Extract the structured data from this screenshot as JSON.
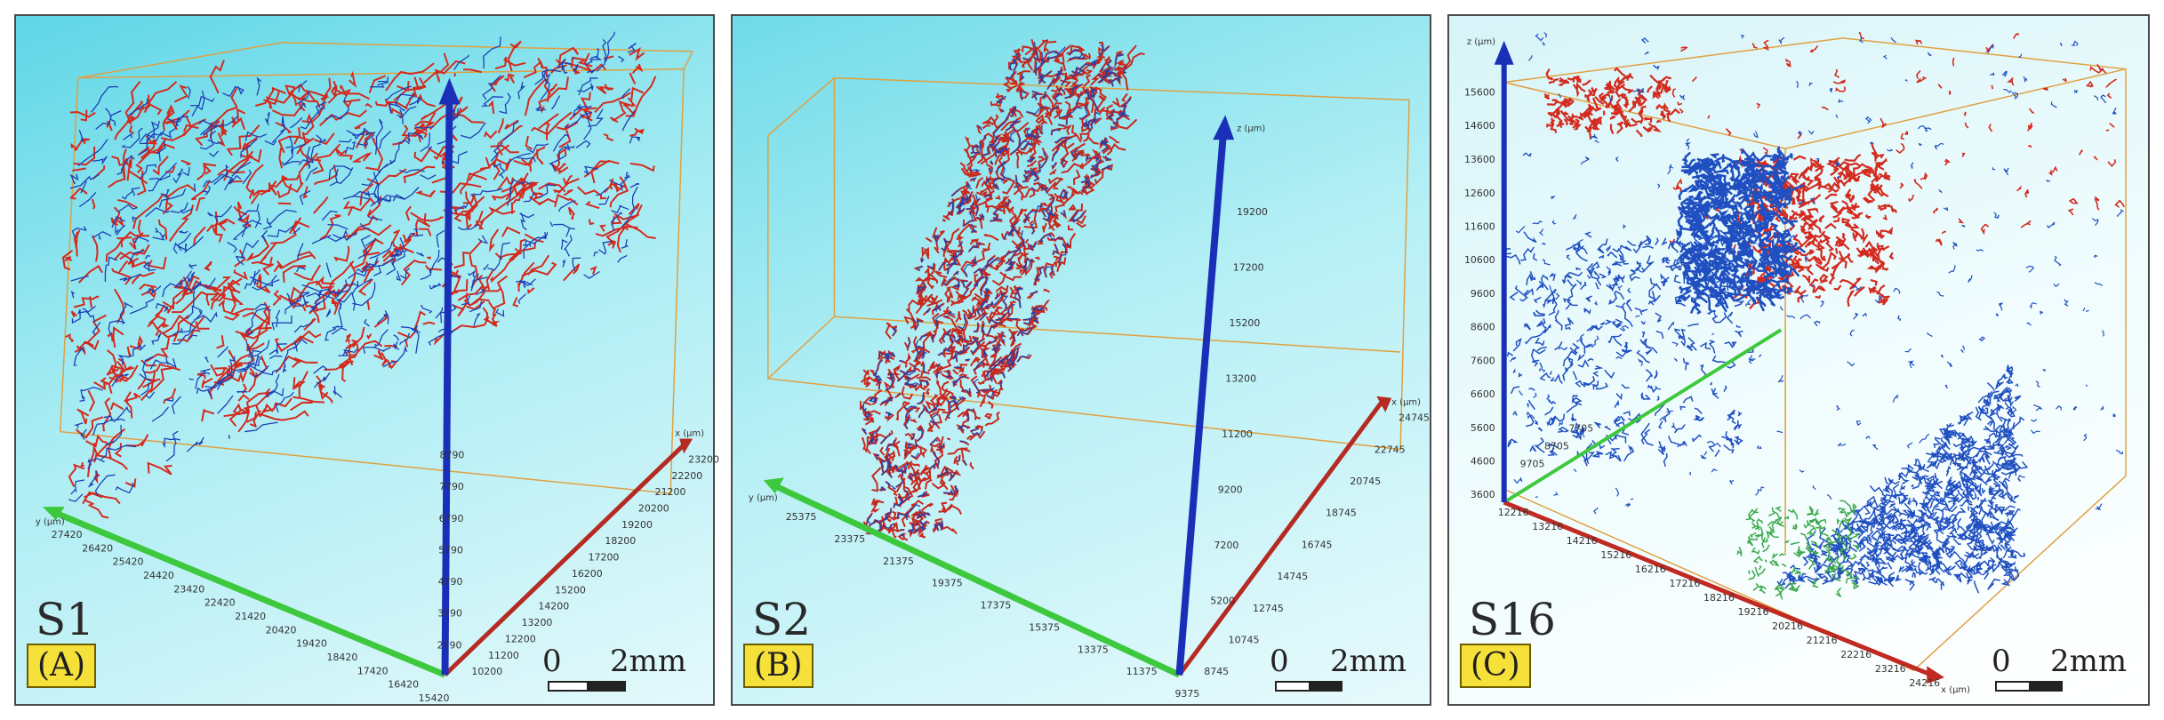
{
  "panels": [
    {
      "sample": "S1",
      "label": "(A)",
      "scale_zero": "0",
      "scale_len": "2mm",
      "y_axis": {
        "unit": "y (μm)",
        "ticks": [
          "27420",
          "26420",
          "25420",
          "24420",
          "23420",
          "22420",
          "21420",
          "20420",
          "19420",
          "18420",
          "17420",
          "16420",
          "15420"
        ]
      },
      "x_axis": {
        "unit": "x (μm)",
        "ticks": [
          "23200",
          "22200",
          "21200",
          "20200",
          "19200",
          "18200",
          "17200",
          "16200",
          "15200",
          "14200",
          "13200",
          "12200",
          "11200",
          "10200"
        ]
      },
      "z_axis": {
        "unit": "",
        "ticks": [
          "8790",
          "7790",
          "6790",
          "5790",
          "4790",
          "3790",
          "2790"
        ]
      },
      "colors": {
        "red": "#d42a1e",
        "blue": "#1d3fb5"
      }
    },
    {
      "sample": "S2",
      "label": "(B)",
      "scale_zero": "0",
      "scale_len": "2mm",
      "y_axis": {
        "unit": "y (μm)",
        "ticks": [
          "25375",
          "23375",
          "21375",
          "19375",
          "17375",
          "15375",
          "13375",
          "11375",
          "9375"
        ]
      },
      "x_axis": {
        "unit": "x (μm)",
        "ticks": [
          "24745",
          "22745",
          "20745",
          "18745",
          "16745",
          "14745",
          "12745",
          "10745",
          "8745"
        ]
      },
      "z_axis": {
        "unit": "z (μm)",
        "ticks": [
          "19200",
          "17200",
          "15200",
          "13200",
          "11200",
          "9200",
          "7200",
          "5200"
        ]
      },
      "colors": {
        "red": "#c9281c",
        "blue": "#2040b0"
      }
    },
    {
      "sample": "S16",
      "label": "(C)",
      "scale_zero": "0",
      "scale_len": "2mm",
      "y_axis": {
        "unit": "",
        "ticks": [
          "9705",
          "8705",
          "7705"
        ]
      },
      "x_axis": {
        "unit": "x (μm)",
        "ticks": [
          "12216",
          "13216",
          "14216",
          "15216",
          "16216",
          "17216",
          "18216",
          "19216",
          "20216",
          "21216",
          "22216",
          "23216",
          "24216"
        ]
      },
      "z_axis": {
        "unit": "z (μm)",
        "ticks": [
          "15600",
          "14600",
          "13600",
          "12600",
          "11600",
          "10600",
          "9600",
          "8600",
          "7600",
          "6600",
          "5600",
          "4600",
          "3600"
        ]
      },
      "colors": {
        "red": "#d42a1e",
        "blue": "#1f4fc0",
        "green": "#3aa84a"
      }
    }
  ]
}
